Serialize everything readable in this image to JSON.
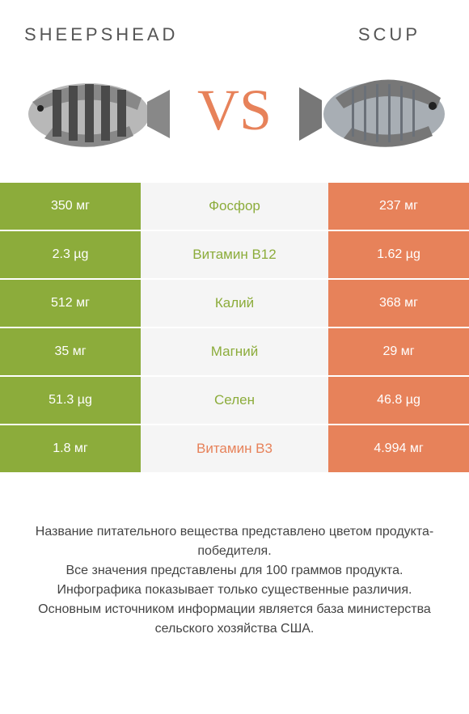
{
  "header": {
    "left_title": "SHEEPSHEAD",
    "right_title": "SCUP"
  },
  "vs_label": "VS",
  "colors": {
    "left_product": "#8cac3b",
    "right_product": "#e7825a",
    "mid_bg": "#f5f5f5",
    "vs_color": "#e7825a",
    "left_winner_text": "#8cac3b",
    "right_winner_text": "#e7825a"
  },
  "rows": [
    {
      "nutrient": "Фосфор",
      "left": "350 мг",
      "right": "237 мг",
      "winner": "left"
    },
    {
      "nutrient": "Витамин B12",
      "left": "2.3 µg",
      "right": "1.62 µg",
      "winner": "left"
    },
    {
      "nutrient": "Калий",
      "left": "512 мг",
      "right": "368 мг",
      "winner": "left"
    },
    {
      "nutrient": "Магний",
      "left": "35 мг",
      "right": "29 мг",
      "winner": "left"
    },
    {
      "nutrient": "Селен",
      "left": "51.3 µg",
      "right": "46.8 µg",
      "winner": "left"
    },
    {
      "nutrient": "Витамин B3",
      "left": "1.8 мг",
      "right": "4.994 мг",
      "winner": "right"
    }
  ],
  "footer": {
    "line1": "Название питательного вещества представлено цветом продукта-победителя.",
    "line2": "Все значения представлены для 100 граммов продукта.",
    "line3": "Инфографика показывает только существенные различия.",
    "line4": "Основным источником информации является база министерства сельского хозяйства США."
  },
  "fish_left": {
    "body_color": "#b8b8b8",
    "stripe_color": "#4a4a4a",
    "fin_color": "#888"
  },
  "fish_right": {
    "body_color": "#a8aeb4",
    "stripe_color": "#6a7078",
    "fin_color": "#777"
  }
}
